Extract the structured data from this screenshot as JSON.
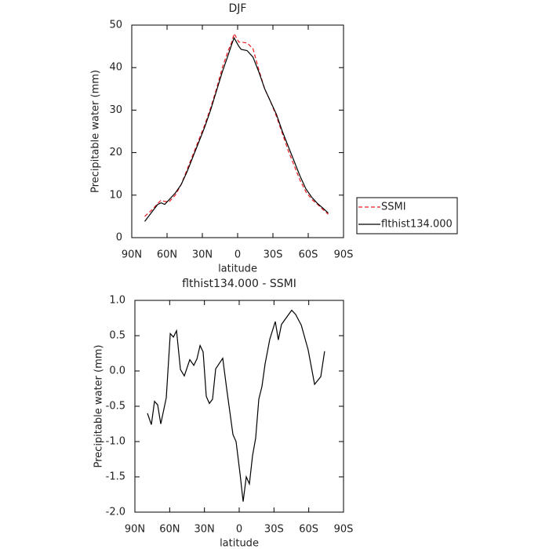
{
  "chart_data": [
    {
      "type": "line",
      "title": "DJF",
      "xlabel": "latitude",
      "ylabel": "Precipitable water (mm)",
      "xlim": [
        90,
        -90
      ],
      "xticks": [
        {
          "value": 90,
          "label": "90N"
        },
        {
          "value": 60,
          "label": "60N"
        },
        {
          "value": 30,
          "label": "30N"
        },
        {
          "value": 0,
          "label": "0"
        },
        {
          "value": -30,
          "label": "30S"
        },
        {
          "value": -60,
          "label": "60S"
        },
        {
          "value": -90,
          "label": "90S"
        }
      ],
      "ylim": [
        0,
        50
      ],
      "yticks": [
        0,
        10,
        20,
        30,
        40,
        50
      ],
      "legend": "right",
      "x": [
        79,
        73,
        68,
        65,
        62,
        58,
        53,
        48,
        43,
        38,
        33,
        28,
        23,
        18,
        13,
        8,
        5,
        3,
        1,
        -1,
        -3,
        -8,
        -13,
        -18,
        -23,
        -28,
        -33,
        -38,
        -43,
        -48,
        -53,
        -58,
        -63,
        -68,
        -73,
        -77
      ],
      "series": [
        {
          "name": "SSMI",
          "color": "#e8191e",
          "linestyle": "dashed",
          "values": [
            5,
            6.5,
            8,
            8.8,
            8.5,
            8.5,
            10,
            12.5,
            16,
            19.5,
            23,
            26.5,
            30.5,
            35,
            40,
            44,
            46,
            48,
            47,
            46,
            46,
            45.8,
            44.5,
            39.5,
            35,
            32,
            28.5,
            24.5,
            20.5,
            17,
            13.5,
            10.8,
            9,
            7.8,
            6.5,
            5.5
          ]
        },
        {
          "name": "flthist134.000",
          "color": "#000000",
          "linestyle": "solid",
          "values": [
            3.8,
            6,
            7.8,
            8.2,
            7.8,
            9,
            10.5,
            12.5,
            15.5,
            19,
            22.5,
            26,
            30,
            34.5,
            39,
            43,
            45.5,
            47,
            46,
            45,
            44.3,
            44,
            42.5,
            39,
            35,
            32,
            29,
            25,
            21.5,
            18,
            14.5,
            11.5,
            9.5,
            8,
            6.8,
            5.8
          ]
        }
      ]
    },
    {
      "type": "line",
      "title": "flthist134.000 - SSMI",
      "xlabel": "latitude",
      "ylabel": "Precipitable water (mm)",
      "xlim": [
        90,
        -90
      ],
      "xticks": [
        {
          "value": 90,
          "label": "90N"
        },
        {
          "value": 60,
          "label": "60N"
        },
        {
          "value": 30,
          "label": "30N"
        },
        {
          "value": 0,
          "label": "0"
        },
        {
          "value": -30,
          "label": "30S"
        },
        {
          "value": -60,
          "label": "60S"
        },
        {
          "value": -90,
          "label": "90S"
        }
      ],
      "ylim": [
        -2,
        1
      ],
      "yticks": [
        {
          "value": 1,
          "label": "1.0"
        },
        {
          "value": 0.5,
          "label": "0.5"
        },
        {
          "value": 0,
          "label": "0.0"
        },
        {
          "value": -0.5,
          "label": "-0.5"
        },
        {
          "value": -1,
          "label": "-1.0"
        },
        {
          "value": -1.5,
          "label": "-1.5"
        },
        {
          "value": -2,
          "label": "-2.0"
        }
      ],
      "x": [
        79.2,
        75.8,
        73.1,
        70.4,
        67.7,
        62.9,
        59.5,
        56.8,
        54.1,
        50.7,
        47.4,
        42.6,
        39.2,
        36.5,
        33.8,
        31.1,
        28.4,
        25.7,
        23.0,
        20.3,
        14.2,
        10.8,
        5.4,
        2.7,
        -0.7,
        -3.4,
        -6.1,
        -8.8,
        -11.5,
        -14.2,
        -16.9,
        -19.6,
        -22.3,
        -26.4,
        -31.1,
        -33.8,
        -36.5,
        -45.3,
        -48.7,
        -53.5,
        -59.5,
        -65.0,
        -70.4,
        -73.7
      ],
      "series": [
        {
          "color": "#000000",
          "linestyle": "solid",
          "values": [
            -0.6,
            -0.76,
            -0.43,
            -0.48,
            -0.75,
            -0.38,
            0.53,
            0.48,
            0.57,
            0.02,
            -0.07,
            0.16,
            0.08,
            0.17,
            0.36,
            0.27,
            -0.36,
            -0.46,
            -0.4,
            0.03,
            0.18,
            -0.25,
            -0.9,
            -1.0,
            -1.45,
            -1.85,
            -1.5,
            -1.6,
            -1.2,
            -0.95,
            -0.4,
            -0.22,
            0.1,
            0.45,
            0.7,
            0.44,
            0.66,
            0.86,
            0.8,
            0.65,
            0.3,
            -0.19,
            -0.08,
            0.28
          ]
        }
      ]
    }
  ]
}
